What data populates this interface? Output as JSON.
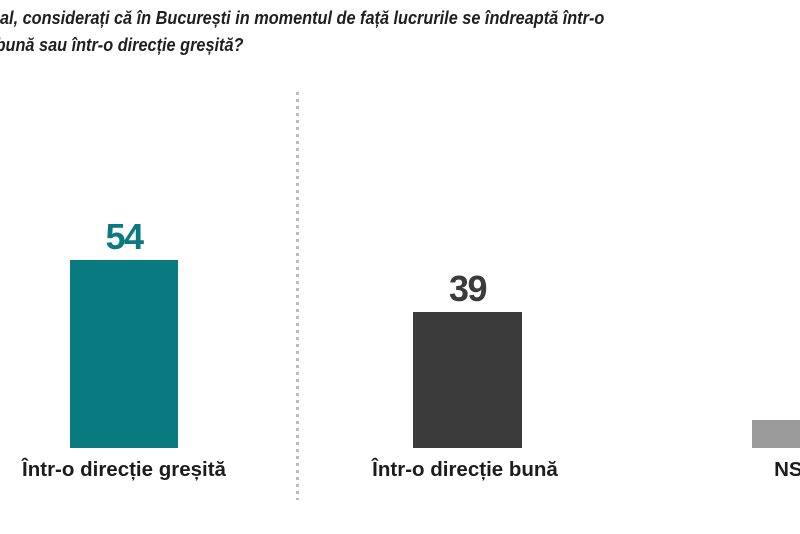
{
  "title": {
    "line1": "al, considerați că în București in momentul de față lucrurile se îndreaptă într-o",
    "line2": "bună sau într-o direcție greșită?"
  },
  "colors": {
    "teal": "#087a80",
    "dark_gray": "#3b3b3b",
    "light_gray": "#9b9b9b",
    "title_text": "#1f1f1f",
    "label_text": "#1c1c1c",
    "divider": "#bdbdbd",
    "background": "#ffffff"
  },
  "chart_data": {
    "type": "bar",
    "title": "al, considerați că în București in momentul de față lucrurile se îndreaptă într-o bună sau într-o direcție greșită?",
    "categories": [
      "Într-o direcție greșită",
      "Într-o direcție bună",
      "NS/NR"
    ],
    "values": [
      54,
      39,
      8
    ],
    "value_labels": [
      "54",
      "39",
      ""
    ],
    "series_colors": [
      "#087a80",
      "#3b3b3b",
      "#9b9b9b"
    ],
    "value_label_colors": [
      "#087a80",
      "#3b3b3b",
      "#3b3b3b"
    ],
    "xlabel": "",
    "ylabel": "",
    "ylim": [
      0,
      60
    ],
    "grid": false,
    "legend": false,
    "layout_hint": "horizontal row of value-labeled bars, dashed vertical divider between first and second bar, third bar clipped at right edge"
  }
}
